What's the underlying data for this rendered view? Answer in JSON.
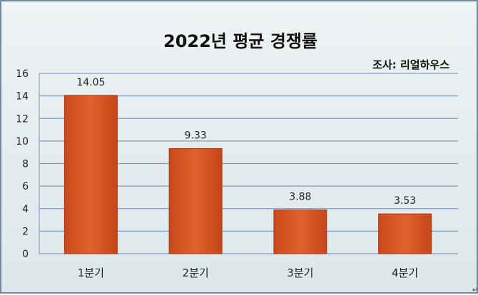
{
  "chart_data": {
    "type": "bar",
    "title": "2022년 평균 경쟁률",
    "source": "조사: 리얼하우스",
    "categories": [
      "1분기",
      "2분기",
      "3분기",
      "4분기"
    ],
    "values": [
      14.05,
      9.33,
      3.88,
      3.53
    ],
    "value_labels": [
      "14.05",
      "9.33",
      "3.88",
      "3.53"
    ],
    "yticks": [
      "0",
      "2",
      "4",
      "6",
      "8",
      "10",
      "12",
      "14",
      "16"
    ],
    "ylim": [
      0,
      16
    ],
    "xlabel": "",
    "ylabel": "",
    "grid": true,
    "bar_color": "#d2501f"
  },
  "footer_mark": "↵"
}
